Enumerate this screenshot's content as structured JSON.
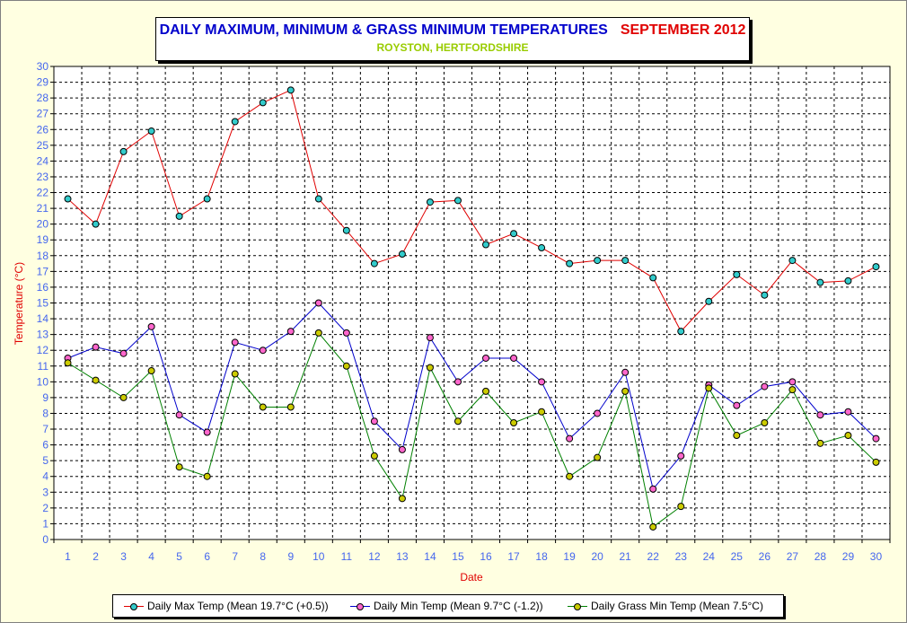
{
  "chart_data": {
    "type": "line",
    "title": "DAILY MAXIMUM, MINIMUM & GRASS MINIMUM TEMPERATURES",
    "title_month": "SEPTEMBER 2012",
    "subtitle": "ROYSTON, HERTFORDSHIRE",
    "xlabel": "Date",
    "ylabel": "Temperature (°C)",
    "ylim": [
      0,
      30
    ],
    "grid": true,
    "legend_placement": "bottom",
    "x": [
      1,
      2,
      3,
      4,
      5,
      6,
      7,
      8,
      9,
      10,
      11,
      12,
      13,
      14,
      15,
      16,
      17,
      18,
      19,
      20,
      21,
      22,
      23,
      24,
      25,
      26,
      27,
      28,
      29,
      30
    ],
    "series": [
      {
        "name": "Daily Max Temp (Mean 19.7°C (+0.5))",
        "line_color": "#e00000",
        "marker_color": "#33cccc",
        "values": [
          21.6,
          20.0,
          24.6,
          25.9,
          20.5,
          21.6,
          26.5,
          27.7,
          28.5,
          21.6,
          19.6,
          17.5,
          18.1,
          21.4,
          21.5,
          18.7,
          19.4,
          18.5,
          17.5,
          17.7,
          17.7,
          16.6,
          13.2,
          15.1,
          16.8,
          15.5,
          17.7,
          16.3,
          16.4,
          17.3
        ]
      },
      {
        "name": "Daily Min Temp (Mean 9.7°C (-1.2))",
        "line_color": "#0000cc",
        "marker_color": "#ff66cc",
        "values": [
          11.5,
          12.2,
          11.8,
          13.5,
          7.9,
          6.8,
          12.5,
          12.0,
          13.2,
          15.0,
          13.1,
          7.5,
          5.7,
          12.8,
          10.0,
          11.5,
          11.5,
          10.0,
          6.4,
          8.0,
          10.6,
          3.2,
          5.3,
          9.8,
          8.5,
          9.7,
          10.0,
          7.9,
          8.1,
          6.4
        ]
      },
      {
        "name": "Daily Grass Min Temp (Mean 7.5°C)",
        "line_color": "#008000",
        "marker_color": "#cccc00",
        "values": [
          11.2,
          10.1,
          9.0,
          10.7,
          4.6,
          4.0,
          10.5,
          8.4,
          8.4,
          13.1,
          11.0,
          5.3,
          2.6,
          10.9,
          7.5,
          9.4,
          7.4,
          8.1,
          4.0,
          5.2,
          9.4,
          0.8,
          2.1,
          9.6,
          6.6,
          7.4,
          9.5,
          6.1,
          6.6,
          4.9
        ]
      }
    ]
  }
}
